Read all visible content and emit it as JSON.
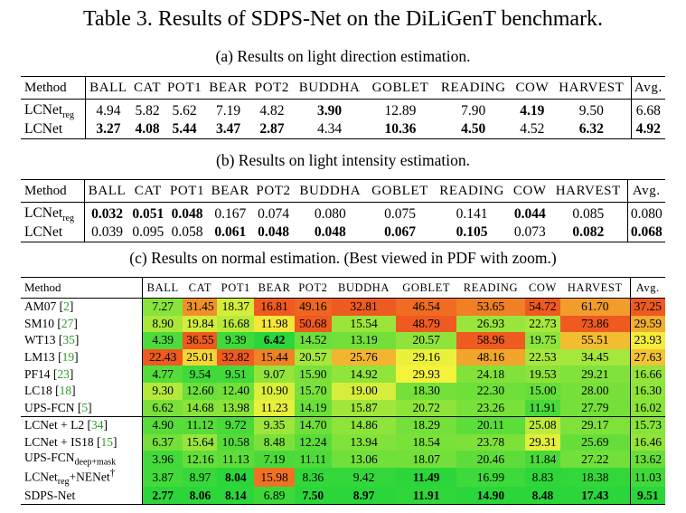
{
  "title": "Table 3. Results of SDPS-Net on the DiLiGenT benchmark.",
  "sub_a": "(a) Results on light direction estimation.",
  "sub_b": "(b) Results on light intensity estimation.",
  "sub_c": "(c) Results on normal estimation. (Best viewed in PDF with zoom.)",
  "header_method": "Method",
  "objects": [
    "BALL",
    "CAT",
    "POT1",
    "BEAR",
    "POT2",
    "BUDDHA",
    "GOBLET",
    "READING",
    "COW",
    "HARVEST"
  ],
  "header_avg": "Avg.",
  "table_a": [
    {
      "name": "LCNet",
      "sub": "reg",
      "values": [
        "4.94",
        "5.82",
        "5.62",
        "7.19",
        "4.82",
        "3.90",
        "12.89",
        "7.90",
        "4.19",
        "9.50"
      ],
      "avg": "6.68",
      "bold": [
        false,
        false,
        false,
        false,
        false,
        true,
        false,
        false,
        true,
        false
      ],
      "avg_bold": false
    },
    {
      "name": "LCNet",
      "sub": "",
      "values": [
        "3.27",
        "4.08",
        "5.44",
        "3.47",
        "2.87",
        "4.34",
        "10.36",
        "4.50",
        "4.52",
        "6.32"
      ],
      "avg": "4.92",
      "bold": [
        true,
        true,
        true,
        true,
        true,
        false,
        true,
        true,
        false,
        true
      ],
      "avg_bold": true
    }
  ],
  "table_b": [
    {
      "name": "LCNet",
      "sub": "reg",
      "values": [
        "0.032",
        "0.051",
        "0.048",
        "0.167",
        "0.074",
        "0.080",
        "0.075",
        "0.141",
        "0.044",
        "0.085"
      ],
      "avg": "0.080",
      "bold": [
        true,
        true,
        true,
        false,
        false,
        false,
        false,
        false,
        true,
        false
      ],
      "avg_bold": false
    },
    {
      "name": "LCNet",
      "sub": "",
      "values": [
        "0.039",
        "0.095",
        "0.058",
        "0.061",
        "0.048",
        "0.048",
        "0.067",
        "0.105",
        "0.073",
        "0.082"
      ],
      "avg": "0.068",
      "bold": [
        false,
        false,
        false,
        true,
        true,
        true,
        true,
        true,
        false,
        true
      ],
      "avg_bold": true
    }
  ],
  "table_c": [
    {
      "name": "AM07",
      "cite": "2",
      "values": [
        "7.27",
        "31.45",
        "18.37",
        "16.81",
        "49.16",
        "32.81",
        "46.54",
        "53.65",
        "54.72",
        "61.70"
      ],
      "avg": "37.25",
      "bold": [],
      "avg_bold": false,
      "sep": false
    },
    {
      "name": "SM10",
      "cite": "27",
      "values": [
        "8.90",
        "19.84",
        "16.68",
        "11.98",
        "50.68",
        "15.54",
        "48.79",
        "26.93",
        "22.73",
        "73.86"
      ],
      "avg": "29.59",
      "bold": [],
      "avg_bold": false,
      "sep": false
    },
    {
      "name": "WT13",
      "cite": "35",
      "values": [
        "4.39",
        "36.55",
        "9.39",
        "6.42",
        "14.52",
        "13.19",
        "20.57",
        "58.96",
        "19.75",
        "55.51"
      ],
      "avg": "23.93",
      "bold": [
        false,
        false,
        false,
        true
      ],
      "avg_bold": false,
      "sep": false
    },
    {
      "name": "LM13",
      "cite": "19",
      "values": [
        "22.43",
        "25.01",
        "32.82",
        "15.44",
        "20.57",
        "25.76",
        "29.16",
        "48.16",
        "22.53",
        "34.45"
      ],
      "avg": "27.63",
      "bold": [],
      "avg_bold": false,
      "sep": false
    },
    {
      "name": "PF14",
      "cite": "23",
      "values": [
        "4.77",
        "9.54",
        "9.51",
        "9.07",
        "15.90",
        "14.92",
        "29.93",
        "24.18",
        "19.53",
        "29.21"
      ],
      "avg": "16.66",
      "bold": [],
      "avg_bold": false,
      "sep": false
    },
    {
      "name": "LC18",
      "cite": "18",
      "values": [
        "9.30",
        "12.60",
        "12.40",
        "10.90",
        "15.70",
        "19.00",
        "18.30",
        "22.30",
        "15.00",
        "28.00"
      ],
      "avg": "16.30",
      "bold": [],
      "avg_bold": false,
      "sep": false
    },
    {
      "name": "UPS-FCN",
      "cite": "5",
      "values": [
        "6.62",
        "14.68",
        "13.98",
        "11.23",
        "14.19",
        "15.87",
        "20.72",
        "23.26",
        "11.91",
        "27.79"
      ],
      "avg": "16.02",
      "bold": [],
      "avg_bold": false,
      "sep": false
    },
    {
      "name": "LCNet + L2",
      "cite": "34",
      "values": [
        "4.90",
        "11.12",
        "9.72",
        "9.35",
        "14.70",
        "14.86",
        "18.29",
        "20.11",
        "25.08",
        "29.17"
      ],
      "avg": "15.73",
      "bold": [],
      "avg_bold": false,
      "sep": true
    },
    {
      "name": "LCNet + IS18",
      "cite": "15",
      "values": [
        "6.37",
        "15.64",
        "10.58",
        "8.48",
        "12.24",
        "13.94",
        "18.54",
        "23.78",
        "29.31",
        "25.69"
      ],
      "avg": "16.46",
      "bold": [],
      "avg_bold": false,
      "sep": false
    },
    {
      "name": "UPS-FCN",
      "sub": "deep+mask",
      "values": [
        "3.96",
        "12.16",
        "11.13",
        "7.19",
        "11.11",
        "13.06",
        "18.07",
        "20.46",
        "11.84",
        "27.22"
      ],
      "avg": "13.62",
      "bold": [],
      "avg_bold": false,
      "sep": false
    },
    {
      "name": "LCNet",
      "sub": "reg",
      "suffix": "+NENet",
      "sup": "†",
      "values": [
        "3.87",
        "8.97",
        "8.04",
        "15.98",
        "8.36",
        "9.42",
        "11.49",
        "16.99",
        "8.83",
        "18.38"
      ],
      "avg": "11.03",
      "bold": [
        false,
        false,
        true,
        false,
        false,
        false,
        true
      ],
      "avg_bold": false,
      "sep": false
    },
    {
      "name": "SDPS-Net",
      "values": [
        "2.77",
        "8.06",
        "8.14",
        "6.89",
        "7.50",
        "8.97",
        "11.91",
        "14.90",
        "8.48",
        "17.43"
      ],
      "avg": "9.51",
      "bold": [
        true,
        true,
        true,
        false,
        true,
        true,
        true,
        true,
        true,
        true
      ],
      "avg_bold": true,
      "sep": false
    }
  ],
  "colors": {
    "scale_low": "#2bd63a",
    "scale_mid": "#f6f23b",
    "scale_high": "#ee5a1f",
    "cite": "#2a9d2a"
  }
}
